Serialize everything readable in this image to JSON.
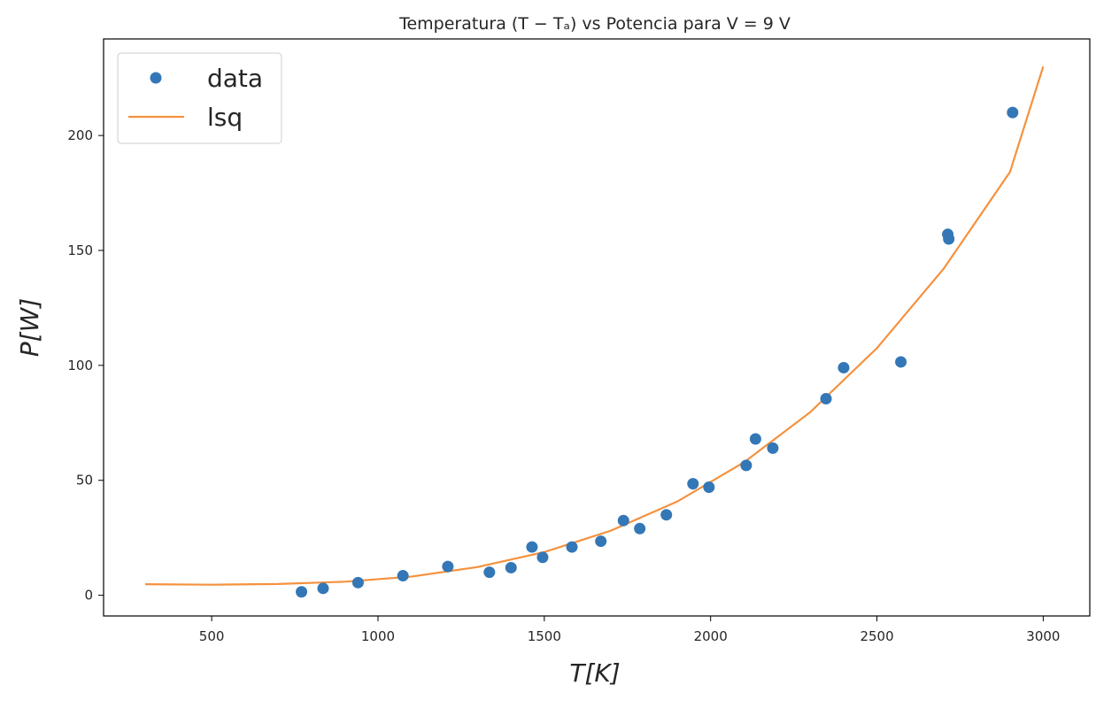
{
  "chart_data": {
    "type": "scatter",
    "title": "Temperatura (T − Tₐ) vs Potencia para V = 9 V",
    "xlabel": "T[K]",
    "ylabel": "P[W]",
    "xlim": [
      175,
      3140
    ],
    "ylim": [
      -9,
      242
    ],
    "x_ticks": [
      500,
      1000,
      1500,
      2000,
      2500,
      3000
    ],
    "y_ticks": [
      0,
      50,
      100,
      150,
      200
    ],
    "grid": false,
    "legend_position": "top-left",
    "series": [
      {
        "name": "data",
        "kind": "scatter",
        "color": "#3477b6",
        "x": [
          770,
          835,
          940,
          1075,
          1210,
          1335,
          1400,
          1463,
          1495,
          1583,
          1670,
          1738,
          1787,
          1867,
          1947,
          1995,
          2107,
          2135,
          2187,
          2347,
          2400,
          2572,
          2713,
          2716,
          2908
        ],
        "y": [
          1.5,
          3,
          5.5,
          8.5,
          12.5,
          10,
          12,
          21,
          16.5,
          21,
          23.5,
          32.5,
          29,
          35,
          48.5,
          47,
          56.5,
          68,
          64,
          85.5,
          99,
          101.5,
          157,
          155,
          210
        ]
      },
      {
        "name": "lsq",
        "kind": "line",
        "color": "#f5913e",
        "x": [
          300,
          500,
          700,
          900,
          1100,
          1300,
          1500,
          1700,
          1900,
          2100,
          2300,
          2500,
          2700,
          2900,
          3000
        ],
        "y": [
          4.8,
          4.6,
          4.9,
          5.9,
          8.1,
          12.3,
          18.8,
          28.1,
          40.8,
          57.8,
          79.7,
          107.5,
          141.9,
          184.1,
          230
        ]
      }
    ]
  }
}
